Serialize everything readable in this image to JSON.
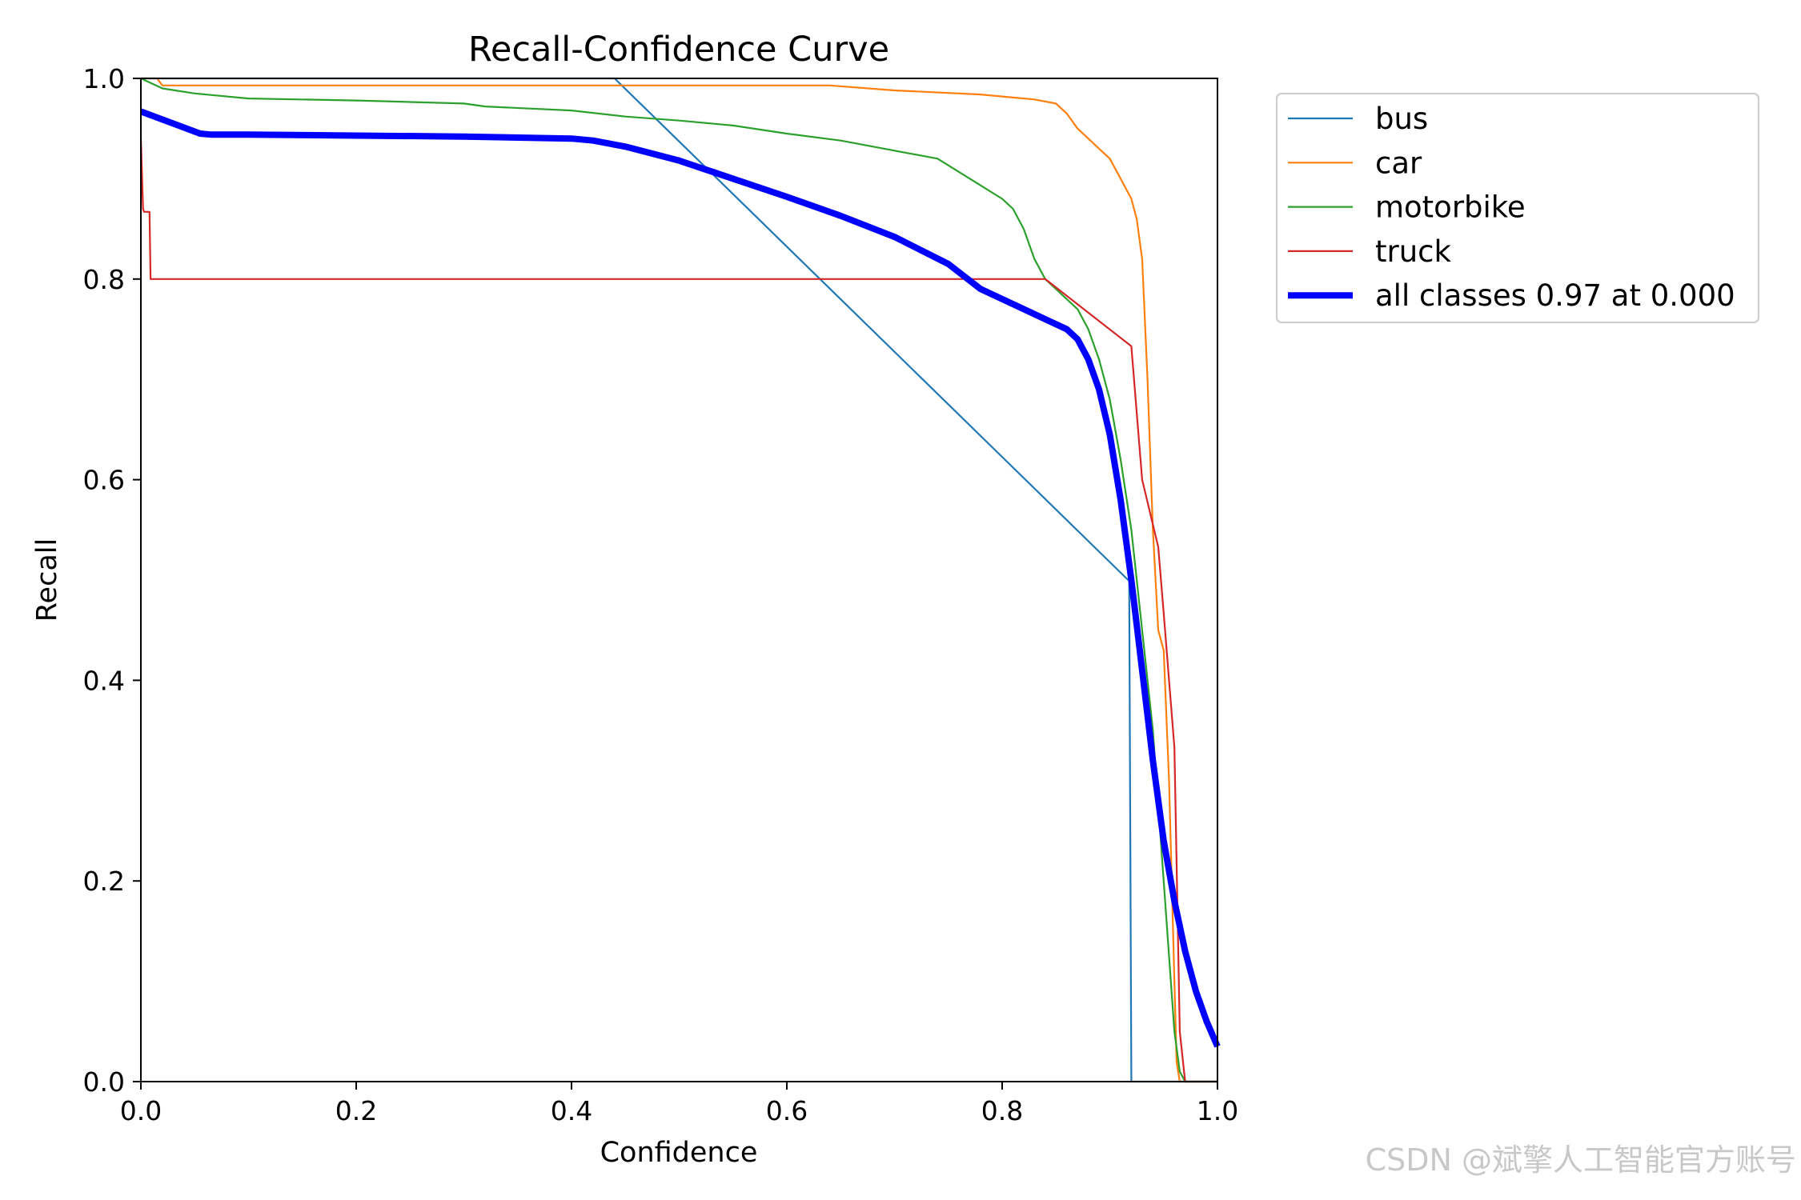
{
  "chart_data": {
    "type": "line",
    "title": "Recall-Confidence Curve",
    "xlabel": "Confidence",
    "ylabel": "Recall",
    "xlim": [
      0,
      1
    ],
    "ylim": [
      0,
      1
    ],
    "xticks": [
      "0.0",
      "0.2",
      "0.4",
      "0.6",
      "0.8",
      "1.0"
    ],
    "yticks": [
      "0.0",
      "0.2",
      "0.4",
      "0.6",
      "0.8",
      "1.0"
    ],
    "grid": false,
    "legend_position": "outside-top-right",
    "series": [
      {
        "name": "bus",
        "color": "#1f77b4",
        "width": 2.2,
        "x": [
          0.0,
          0.44,
          0.917,
          0.917,
          0.918,
          0.92,
          1.0
        ],
        "y": [
          1.0,
          1.0,
          0.5,
          0.5,
          0.5,
          0.0,
          0.0
        ]
      },
      {
        "name": "car",
        "color": "#ff7f0e",
        "width": 2.2,
        "x": [
          0.0,
          0.015,
          0.02,
          0.1,
          0.3,
          0.5,
          0.64,
          0.7,
          0.78,
          0.83,
          0.85,
          0.86,
          0.87,
          0.88,
          0.89,
          0.9,
          0.91,
          0.92,
          0.925,
          0.93,
          0.935,
          0.94,
          0.945,
          0.95,
          0.955,
          0.96,
          0.962,
          0.965,
          1.0
        ],
        "y": [
          1.0,
          1.0,
          0.993,
          0.993,
          0.993,
          0.993,
          0.993,
          0.988,
          0.984,
          0.979,
          0.975,
          0.965,
          0.95,
          0.94,
          0.93,
          0.92,
          0.9,
          0.88,
          0.86,
          0.82,
          0.7,
          0.55,
          0.45,
          0.43,
          0.3,
          0.1,
          0.02,
          0.0,
          0.0
        ]
      },
      {
        "name": "motorbike",
        "color": "#2ca02c",
        "width": 2.2,
        "x": [
          0.0,
          0.02,
          0.05,
          0.1,
          0.2,
          0.3,
          0.32,
          0.4,
          0.45,
          0.5,
          0.55,
          0.6,
          0.65,
          0.7,
          0.74,
          0.77,
          0.8,
          0.81,
          0.82,
          0.83,
          0.84,
          0.85,
          0.86,
          0.87,
          0.88,
          0.89,
          0.9,
          0.91,
          0.92,
          0.93,
          0.94,
          0.95,
          0.96,
          0.965,
          0.97,
          1.0
        ],
        "y": [
          1.0,
          0.99,
          0.985,
          0.98,
          0.978,
          0.975,
          0.972,
          0.968,
          0.962,
          0.958,
          0.953,
          0.945,
          0.938,
          0.928,
          0.92,
          0.9,
          0.88,
          0.87,
          0.85,
          0.82,
          0.8,
          0.79,
          0.78,
          0.77,
          0.75,
          0.72,
          0.68,
          0.62,
          0.55,
          0.45,
          0.35,
          0.2,
          0.05,
          0.01,
          0.0,
          0.0
        ]
      },
      {
        "name": "truck",
        "color": "#d62728",
        "width": 2.2,
        "x": [
          0.0,
          0.002,
          0.003,
          0.008,
          0.009,
          0.01,
          0.5,
          0.84,
          0.92,
          0.925,
          0.93,
          0.945,
          0.95,
          0.955,
          0.96,
          0.965,
          0.97,
          1.0
        ],
        "y": [
          0.94,
          0.87,
          0.867,
          0.867,
          0.8,
          0.8,
          0.8,
          0.8,
          0.733,
          0.667,
          0.6,
          0.533,
          0.467,
          0.4,
          0.333,
          0.05,
          0.0,
          0.0
        ]
      },
      {
        "name": "all classes 0.97 at 0.000",
        "color": "#0000ff",
        "width": 8,
        "x": [
          0.0,
          0.03,
          0.055,
          0.065,
          0.1,
          0.2,
          0.3,
          0.4,
          0.42,
          0.45,
          0.5,
          0.55,
          0.6,
          0.65,
          0.7,
          0.75,
          0.78,
          0.81,
          0.84,
          0.86,
          0.87,
          0.88,
          0.89,
          0.9,
          0.91,
          0.92,
          0.93,
          0.94,
          0.95,
          0.96,
          0.97,
          0.98,
          0.99,
          1.0
        ],
        "y": [
          0.967,
          0.955,
          0.945,
          0.944,
          0.944,
          0.943,
          0.942,
          0.94,
          0.938,
          0.932,
          0.918,
          0.9,
          0.882,
          0.863,
          0.842,
          0.815,
          0.79,
          0.775,
          0.76,
          0.75,
          0.74,
          0.72,
          0.69,
          0.645,
          0.58,
          0.5,
          0.41,
          0.32,
          0.24,
          0.18,
          0.13,
          0.09,
          0.06,
          0.035
        ]
      }
    ]
  },
  "watermark": "CSDN @斌擎人工智能官方账号"
}
